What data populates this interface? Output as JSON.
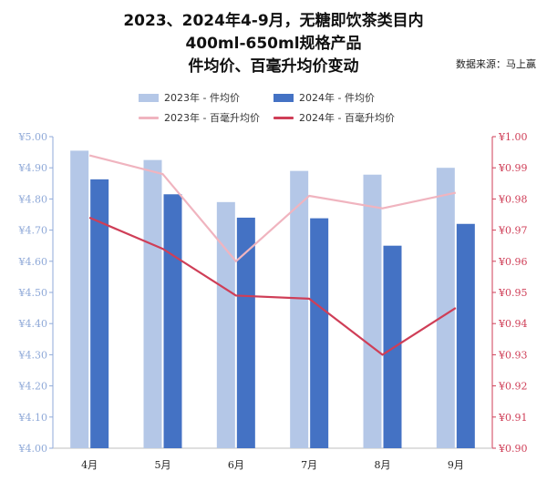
{
  "chart_data": {
    "type": "bar",
    "title_lines": [
      "2023、2024年4-9月，无糖即饮茶类目内",
      "400ml-650ml规格产品",
      "件均价、百毫升均价变动"
    ],
    "source": "数据来源：马上赢",
    "categories": [
      "4月",
      "5月",
      "6月",
      "7月",
      "8月",
      "9月"
    ],
    "series": [
      {
        "name": "2023年 - 件均价",
        "kind": "bar",
        "axis": "left",
        "color": "#b4c7e7",
        "values": [
          4.955,
          4.925,
          4.79,
          4.89,
          4.878,
          4.9
        ]
      },
      {
        "name": "2024年 - 件均价",
        "kind": "bar",
        "axis": "left",
        "color": "#4472c4",
        "values": [
          4.863,
          4.815,
          4.74,
          4.738,
          4.65,
          4.72
        ]
      },
      {
        "name": "2023年 - 百毫升均价",
        "kind": "line",
        "axis": "right",
        "color": "#f0b4bf",
        "values": [
          0.994,
          0.988,
          0.96,
          0.981,
          0.977,
          0.982
        ]
      },
      {
        "name": "2024年 - 百毫升均价",
        "kind": "line",
        "axis": "right",
        "color": "#cf3e57",
        "values": [
          0.974,
          0.964,
          0.949,
          0.948,
          0.93,
          0.945
        ]
      }
    ],
    "y_left": {
      "min": 4.0,
      "max": 5.0,
      "ticks": [
        "¥5.00",
        "¥4.90",
        "¥4.80",
        "¥4.70",
        "¥4.60",
        "¥4.50",
        "¥4.40",
        "¥4.30",
        "¥4.20",
        "¥4.10",
        "¥4.00"
      ]
    },
    "y_right": {
      "min": 0.9,
      "max": 1.0,
      "ticks": [
        "¥1.00",
        "¥0.99",
        "¥0.98",
        "¥0.97",
        "¥0.96",
        "¥0.95",
        "¥0.94",
        "¥0.93",
        "¥0.92",
        "¥0.91",
        "¥0.90"
      ]
    },
    "grid": false,
    "legend_position": "top",
    "left_axis_color": "#8fa9d8",
    "right_axis_color": "#cf3e57"
  }
}
